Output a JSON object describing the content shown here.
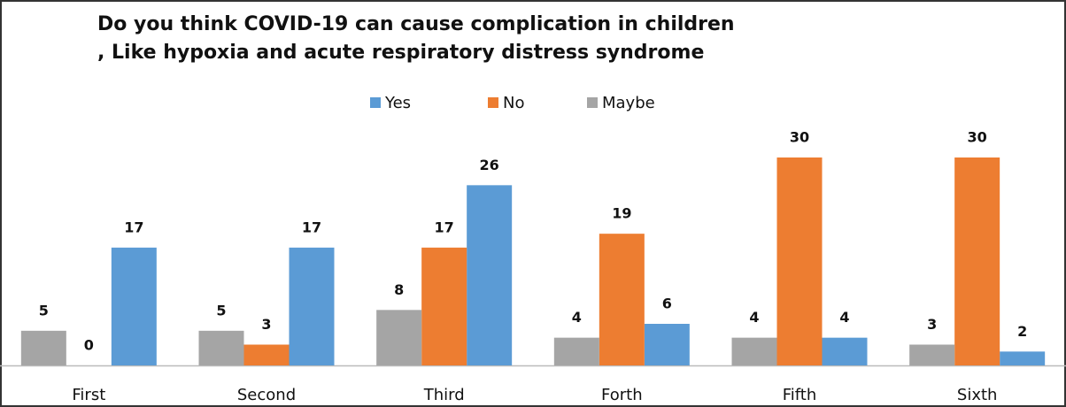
{
  "chart_data": {
    "type": "bar",
    "title": [
      "Do you think COVID-19 can cause complication in children",
      ", Like hypoxia and acute respiratory distress syndrome"
    ],
    "categories": [
      "First",
      "Second",
      "Third",
      "Forth",
      "Fifth",
      "Sixth"
    ],
    "series": [
      {
        "name": "Yes",
        "color": "#5b9bd5",
        "values": [
          17,
          17,
          26,
          6,
          4,
          2
        ]
      },
      {
        "name": "No",
        "color": "#ed7d31",
        "values": [
          0,
          3,
          17,
          19,
          30,
          30
        ]
      },
      {
        "name": "Maybe",
        "color": "#a5a5a5",
        "values": [
          5,
          5,
          8,
          4,
          4,
          3
        ]
      }
    ],
    "legend": "top"
  }
}
